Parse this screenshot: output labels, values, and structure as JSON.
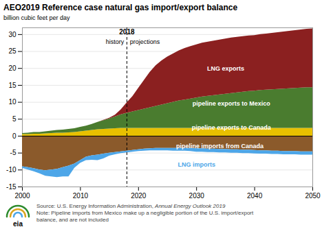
{
  "chart_data": {
    "type": "area",
    "stacked": true,
    "grid": true,
    "title": "AEO2019 Reference case natural gas import/export balance",
    "ylabel": "billion cubic feet per day",
    "xlim": [
      2000,
      2050
    ],
    "xticks": [
      2000,
      2010,
      2020,
      2030,
      2040,
      2050
    ],
    "ylim": [
      -15,
      32
    ],
    "yticks": [
      -15,
      -10,
      -5,
      0,
      5,
      10,
      15,
      20,
      25,
      30
    ],
    "x": [
      2000,
      2001,
      2002,
      2003,
      2004,
      2005,
      2006,
      2007,
      2008,
      2009,
      2010,
      2011,
      2012,
      2013,
      2014,
      2015,
      2016,
      2017,
      2018,
      2019,
      2020,
      2021,
      2022,
      2023,
      2024,
      2025,
      2026,
      2027,
      2028,
      2029,
      2030,
      2031,
      2032,
      2033,
      2034,
      2035,
      2036,
      2037,
      2038,
      2039,
      2040,
      2041,
      2042,
      2043,
      2044,
      2045,
      2046,
      2047,
      2048,
      2049,
      2050
    ],
    "series": [
      {
        "name": "pipeline exports to Canada",
        "color": "#E8C000",
        "label_x": 2036,
        "label_y": 2.5,
        "values": [
          0.5,
          0.5,
          0.6,
          0.6,
          0.7,
          0.8,
          0.9,
          0.9,
          1.0,
          1.1,
          1.3,
          1.5,
          1.7,
          1.9,
          2.0,
          2.1,
          2.2,
          2.3,
          2.3,
          2.3,
          2.3,
          2.3,
          2.3,
          2.3,
          2.3,
          2.3,
          2.3,
          2.3,
          2.3,
          2.3,
          2.3,
          2.3,
          2.3,
          2.3,
          2.3,
          2.3,
          2.3,
          2.3,
          2.3,
          2.3,
          2.3,
          2.3,
          2.3,
          2.3,
          2.3,
          2.3,
          2.3,
          2.3,
          2.3,
          2.3,
          2.3
        ]
      },
      {
        "name": "pipeline exports to Mexico",
        "color": "#4A7C2F",
        "label_x": 2036,
        "label_y": 9.5,
        "values": [
          0.3,
          0.4,
          0.5,
          0.5,
          0.6,
          0.7,
          0.8,
          0.9,
          1.0,
          1.1,
          1.3,
          1.5,
          1.8,
          2.2,
          2.6,
          3.0,
          3.5,
          4.0,
          4.5,
          4.9,
          5.3,
          5.7,
          6.1,
          6.5,
          6.9,
          7.3,
          7.7,
          8.1,
          8.4,
          8.7,
          9.0,
          9.3,
          9.5,
          9.7,
          9.9,
          10.1,
          10.3,
          10.5,
          10.7,
          10.9,
          11.0,
          11.2,
          11.3,
          11.4,
          11.5,
          11.6,
          11.7,
          11.8,
          11.9,
          12.0,
          12.0
        ]
      },
      {
        "name": "LNG exports",
        "color": "#8B2020",
        "label_x": 2035,
        "label_y": 20,
        "values": [
          0.0,
          0.0,
          0.0,
          0.0,
          0.0,
          0.0,
          0.0,
          0.0,
          0.0,
          0.0,
          0.0,
          0.0,
          0.0,
          0.0,
          0.1,
          0.2,
          0.5,
          1.5,
          3.0,
          4.5,
          6.5,
          8.5,
          10.5,
          12.0,
          13.0,
          13.8,
          14.3,
          14.8,
          15.2,
          15.5,
          15.7,
          15.9,
          16.0,
          16.1,
          16.2,
          16.3,
          16.4,
          16.4,
          16.4,
          16.4,
          16.4,
          16.5,
          16.6,
          16.7,
          16.8,
          16.9,
          17.0,
          17.1,
          17.2,
          17.3,
          17.4
        ]
      },
      {
        "name": "pipeline imports from Canada",
        "color": "#8B5A2B",
        "label_x": 2034,
        "label_y": -3.0,
        "values": [
          -9.0,
          -9.3,
          -9.6,
          -10.0,
          -10.2,
          -10.0,
          -9.8,
          -9.3,
          -8.8,
          -8.2,
          -7.2,
          -6.2,
          -5.8,
          -5.6,
          -5.3,
          -5.0,
          -4.8,
          -4.6,
          -4.4,
          -4.2,
          -4.0,
          -3.8,
          -3.7,
          -3.6,
          -3.6,
          -3.6,
          -3.6,
          -3.6,
          -3.6,
          -3.6,
          -3.7,
          -3.7,
          -3.8,
          -3.8,
          -3.9,
          -3.9,
          -4.0,
          -4.0,
          -4.1,
          -4.1,
          -4.2,
          -4.3,
          -4.3,
          -4.4,
          -4.4,
          -4.5,
          -4.5,
          -4.5,
          -4.6,
          -4.6,
          -4.6
        ]
      },
      {
        "name": "LNG imports",
        "color": "#4DA6E8",
        "label_x": 2030,
        "label_y": -8.5,
        "values": [
          -0.5,
          -0.7,
          -0.9,
          -1.1,
          -1.6,
          -2.0,
          -2.4,
          -2.7,
          -3.2,
          -1.3,
          -0.8,
          -1.0,
          -1.3,
          -1.6,
          -1.4,
          -0.9,
          -0.7,
          -0.5,
          -0.5,
          -0.5,
          -0.5,
          -0.6,
          -0.6,
          -0.7,
          -0.7,
          -0.7,
          -0.8,
          -0.8,
          -0.8,
          -0.9,
          -1.0,
          -1.0,
          -1.0,
          -1.0,
          -1.0,
          -1.0,
          -1.0,
          -1.0,
          -1.0,
          -1.0,
          -1.0,
          -1.0,
          -1.0,
          -1.0,
          -1.0,
          -1.0,
          -1.0,
          -1.0,
          -1.0,
          -1.0,
          -1.0
        ]
      }
    ],
    "vlines": [
      2018
    ],
    "annotations": [
      {
        "text": "history",
        "x": 2017.5,
        "y": 28.5
      },
      {
        "text": "projections",
        "x": 2018.5,
        "y": 28.5
      },
      {
        "text": "2018",
        "x": 2018,
        "y": 30.8
      }
    ],
    "source": "Source: U.S. Energy Information Administration, ",
    "source_italic": "Annual Energy Outlook 2019",
    "note": "Note: Pipeline imports from Mexico make up a negligible portion of the U.S. import/export\nbalance, and are not included",
    "logo_text": "eia"
  }
}
